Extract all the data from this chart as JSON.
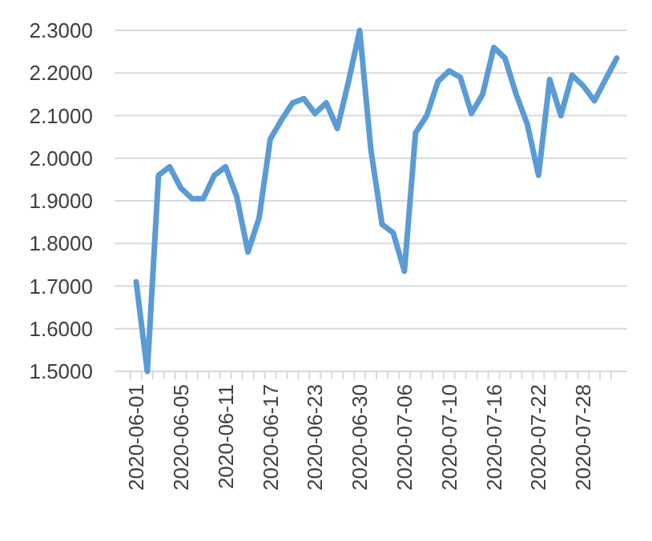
{
  "chart_data": {
    "type": "line",
    "categories": [
      "2020-06-01",
      null,
      null,
      null,
      "2020-06-05",
      null,
      null,
      null,
      "2020-06-11",
      null,
      null,
      null,
      "2020-06-17",
      null,
      null,
      null,
      "2020-06-23",
      null,
      null,
      null,
      "2020-06-30",
      null,
      null,
      null,
      "2020-07-06",
      null,
      null,
      null,
      "2020-07-10",
      null,
      null,
      null,
      "2020-07-16",
      null,
      null,
      null,
      "2020-07-22",
      null,
      null,
      null,
      "2020-07-28",
      null,
      null,
      null
    ],
    "series": [
      {
        "color": "#5b9bd5",
        "values": [
          1.71,
          1.5,
          1.96,
          1.98,
          1.93,
          1.905,
          1.905,
          1.96,
          1.98,
          1.91,
          1.78,
          1.86,
          2.045,
          2.09,
          2.13,
          2.14,
          2.105,
          2.13,
          2.07,
          2.18,
          2.3,
          2.02,
          1.845,
          1.825,
          1.735,
          2.06,
          2.1,
          2.18,
          2.205,
          2.19,
          2.105,
          2.15,
          2.26,
          2.235,
          2.15,
          2.08,
          1.96,
          2.185,
          2.1,
          2.195,
          2.17,
          2.135,
          2.185,
          2.235
        ]
      }
    ],
    "ylim": [
      1.5,
      2.3
    ],
    "yticks": [
      {
        "value": 1.5,
        "label": "1.5000"
      },
      {
        "value": 1.6,
        "label": "1.6000"
      },
      {
        "value": 1.7,
        "label": "1.7000"
      },
      {
        "value": 1.8,
        "label": "1.8000"
      },
      {
        "value": 1.9,
        "label": "1.9000"
      },
      {
        "value": 2.0,
        "label": "2.0000"
      },
      {
        "value": 2.1,
        "label": "2.1000"
      },
      {
        "value": 2.2,
        "label": "2.2000"
      },
      {
        "value": 2.3,
        "label": "2.3000"
      }
    ],
    "grid": "y",
    "marker": "none",
    "line_style": "solid"
  }
}
